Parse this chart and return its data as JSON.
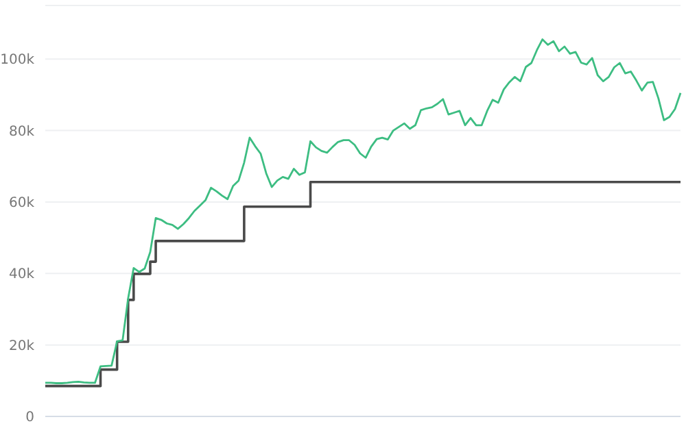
{
  "chart_data": {
    "type": "line",
    "categories": [
      null,
      null,
      null,
      null,
      null,
      null,
      null,
      null,
      null,
      null,
      null,
      null,
      null,
      null,
      null,
      null,
      null,
      null,
      null,
      null,
      null,
      null,
      null,
      null,
      null,
      null,
      null,
      null,
      null,
      null,
      null,
      null,
      null,
      null,
      null,
      null,
      null,
      null,
      null,
      null,
      null,
      null,
      null,
      null,
      null,
      null,
      null,
      null,
      null,
      null,
      null,
      null,
      null,
      null,
      null,
      null,
      null,
      null,
      null,
      null,
      null,
      null,
      null,
      null,
      null,
      null,
      null,
      null,
      null,
      null,
      null,
      null,
      null,
      null,
      null,
      null,
      null,
      null,
      null,
      null,
      null,
      null,
      null,
      null,
      null,
      null,
      null,
      null,
      null,
      null,
      null,
      null,
      null,
      null,
      null,
      null,
      null,
      null,
      null,
      null,
      null,
      null,
      null,
      null,
      null,
      null,
      null,
      null,
      null,
      null,
      null,
      null,
      null,
      null,
      null,
      null
    ],
    "series": [
      {
        "color": "#3dbd82",
        "values": [
          9400,
          9400,
          9300,
          9300,
          9400,
          9600,
          9700,
          9500,
          9400,
          9400,
          14000,
          14100,
          14200,
          21000,
          21300,
          33000,
          41500,
          40400,
          41400,
          46000,
          55500,
          55000,
          54000,
          53600,
          52500,
          53800,
          55500,
          57500,
          59000,
          60500,
          64000,
          63000,
          61800,
          60800,
          64500,
          66000,
          71000,
          78000,
          75600,
          73500,
          68000,
          64200,
          66000,
          67000,
          66500,
          69300,
          67600,
          68300,
          77000,
          75300,
          74300,
          73800,
          75400,
          76800,
          77300,
          77300,
          76000,
          73600,
          72400,
          75500,
          77600,
          78000,
          77500,
          80000,
          81000,
          82000,
          80500,
          81500,
          85700,
          86200,
          86500,
          87500,
          88800,
          84500,
          85000,
          85500,
          81500,
          83500,
          81500,
          81500,
          85500,
          88600,
          87800,
          91500,
          93500,
          95000,
          93800,
          97800,
          98900,
          102500,
          105500,
          104000,
          105000,
          102200,
          103500,
          101500,
          102000,
          99000,
          98500,
          100300,
          95500,
          93800,
          95000,
          97700,
          98900,
          96000,
          96500,
          94000,
          91200,
          93400,
          93600,
          89000,
          82900,
          83800,
          86000,
          90500
        ]
      },
      {
        "type": "step",
        "color": "#4a4a4a",
        "values": [
          8500,
          8500,
          8500,
          8500,
          8500,
          8500,
          8500,
          8500,
          8500,
          8500,
          13100,
          13100,
          13100,
          20900,
          20900,
          32600,
          39900,
          39900,
          39900,
          43300,
          49100,
          49100,
          49100,
          49100,
          49100,
          49100,
          49100,
          49100,
          49100,
          49100,
          49100,
          49100,
          49100,
          49100,
          49100,
          49100,
          58700,
          58700,
          58700,
          58700,
          58700,
          58700,
          58700,
          58700,
          58700,
          58700,
          58700,
          58700,
          65600,
          65600,
          65600,
          65600,
          65600,
          65600,
          65600,
          65600,
          65600,
          65600,
          65600,
          65600,
          65600,
          65600,
          65600,
          65600,
          65600,
          65600,
          65600,
          65600,
          65600,
          65600,
          65600,
          65600,
          65600,
          65600,
          65600,
          65600,
          65600,
          65600,
          65600,
          65600,
          65600,
          65600,
          65600,
          65600,
          65600,
          65600,
          65600,
          65600,
          65600,
          65600,
          65600,
          65600,
          65600,
          65600,
          65600,
          65600,
          65600,
          65600,
          65600,
          65600,
          65600,
          65600,
          65600,
          65600,
          65600,
          65600,
          65600,
          65600,
          65600,
          65600,
          65600,
          65600,
          65600,
          65600,
          65600,
          65600
        ]
      }
    ],
    "ylim": [
      0,
      115000
    ],
    "yticks": [
      0,
      {
        "value": 20000,
        "label": "20k"
      },
      {
        "value": 40000,
        "label": "40k"
      },
      {
        "value": 60000,
        "label": "60k"
      },
      {
        "value": 80000,
        "label": "80k"
      },
      {
        "value": 100000,
        "label": "100k"
      }
    ],
    "grid": "y",
    "tick_labels": "y"
  }
}
